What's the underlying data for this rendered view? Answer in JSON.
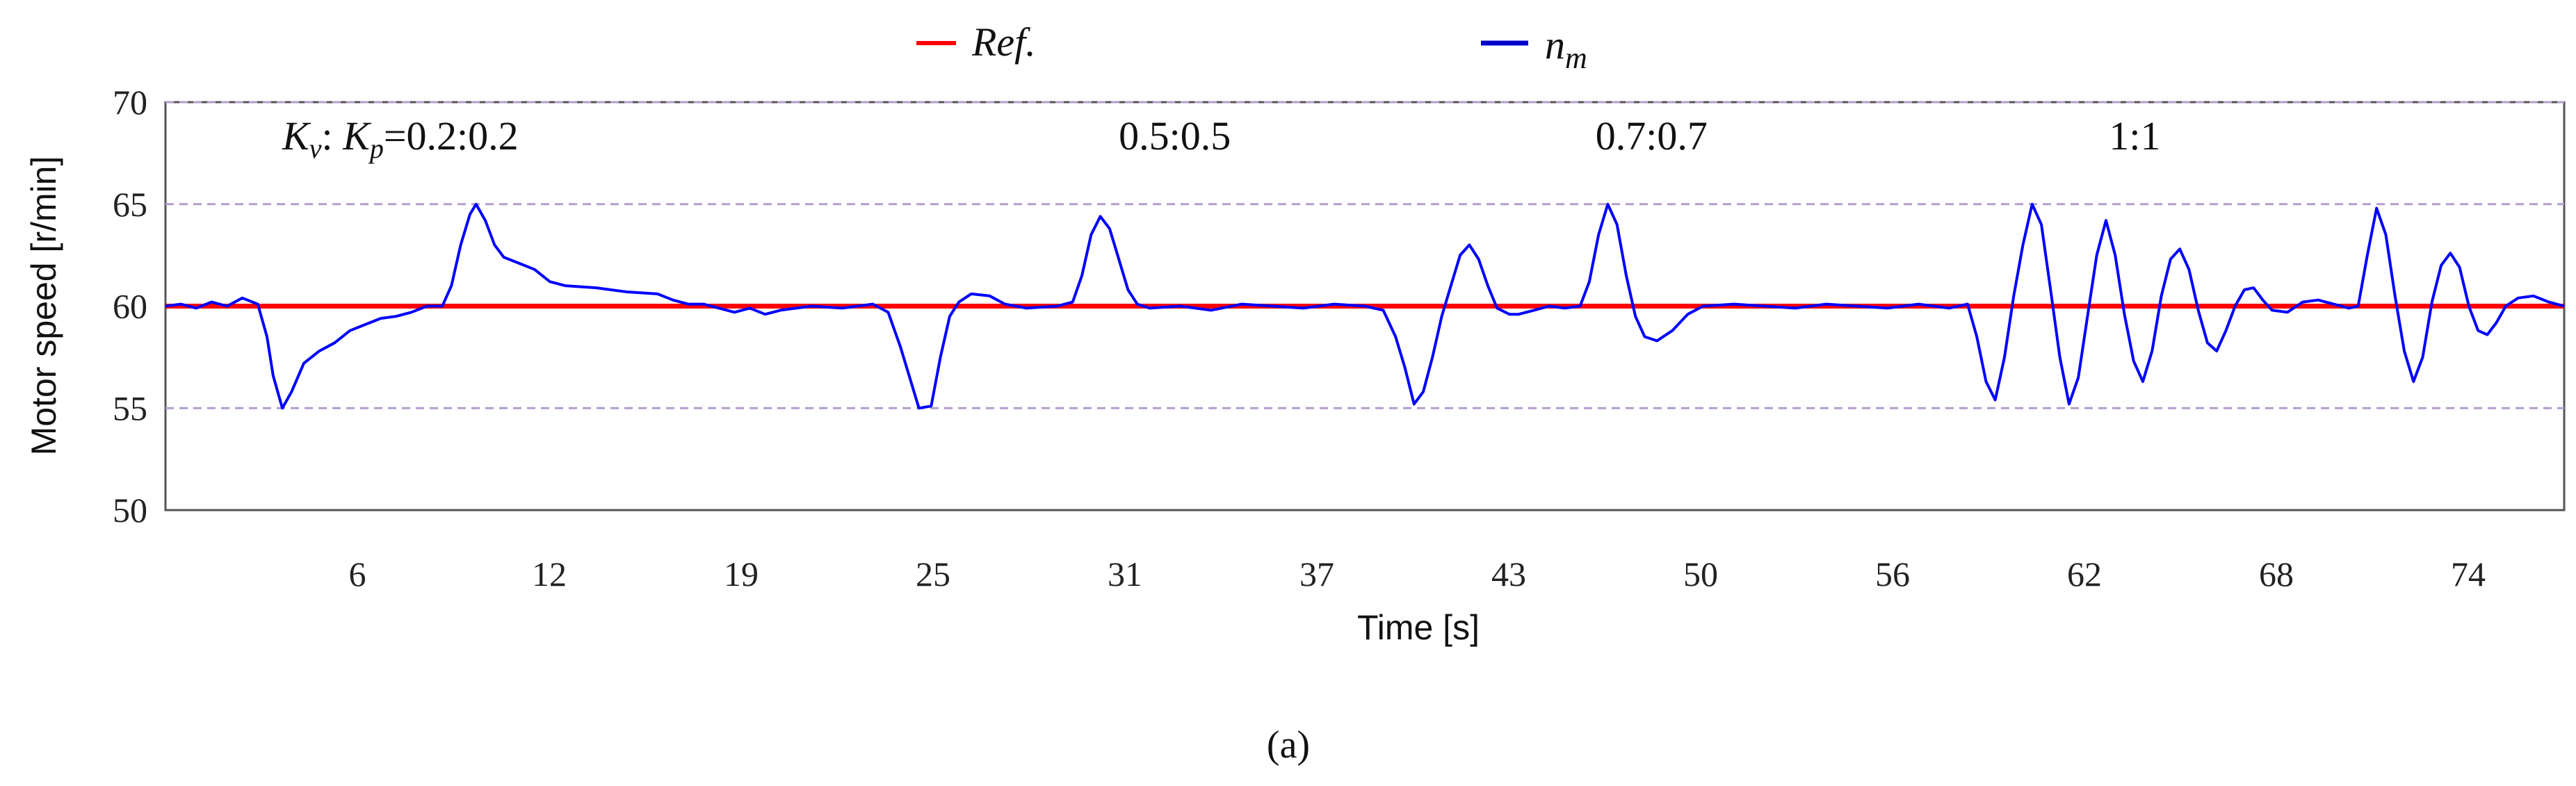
{
  "chart_data": {
    "type": "line",
    "title": "",
    "xlabel": "Time [s]",
    "ylabel": "Motor speed [r/min]",
    "caption": "(a)",
    "x_ticks": [
      "6",
      "12",
      "19",
      "25",
      "31",
      "37",
      "43",
      "50",
      "56",
      "62",
      "68",
      "74"
    ],
    "ylim": [
      50,
      70
    ],
    "y_ticks": [
      50,
      55,
      60,
      65,
      70
    ],
    "xlim": [
      0,
      78
    ],
    "grid": "dashed horizontal lines at 55, 60, 65, 70",
    "legend": {
      "position": "top-center",
      "entries": [
        {
          "name": "Ref.",
          "color": "#ff0000"
        },
        {
          "name": "n_m",
          "base": "n",
          "sub": "m",
          "color": "#0000ff"
        }
      ]
    },
    "annotations": [
      {
        "text": "Kv : Kp =0.2:0.2",
        "k1": "K",
        "s1": "v",
        "sep": ": ",
        "k2": "K",
        "s2": "p",
        "ratio": "=0.2:0.2",
        "x": 3.8
      },
      {
        "text": "0.5:0.5",
        "x": 31
      },
      {
        "text": "0.7:0.7",
        "x": 46.5
      },
      {
        "text": "1:1",
        "x": 63.2
      }
    ],
    "series": [
      {
        "name": "Ref.",
        "color": "#ff0000",
        "points": [
          [
            0,
            60
          ],
          [
            78,
            60
          ]
        ]
      },
      {
        "name": "n_m",
        "color": "#0000ff",
        "points": [
          [
            0,
            60.0
          ],
          [
            0.5,
            60.1
          ],
          [
            1.0,
            59.9
          ],
          [
            1.5,
            60.2
          ],
          [
            2.0,
            60.0
          ],
          [
            2.5,
            60.4
          ],
          [
            3.0,
            60.1
          ],
          [
            3.3,
            58.5
          ],
          [
            3.5,
            56.6
          ],
          [
            3.8,
            55.0
          ],
          [
            4.1,
            55.8
          ],
          [
            4.5,
            57.2
          ],
          [
            5.0,
            57.8
          ],
          [
            5.5,
            58.2
          ],
          [
            6.0,
            58.8
          ],
          [
            6.5,
            59.1
          ],
          [
            7.0,
            59.4
          ],
          [
            7.5,
            59.5
          ],
          [
            8.0,
            59.7
          ],
          [
            8.5,
            60.0
          ],
          [
            9.0,
            60.0
          ],
          [
            9.3,
            61.0
          ],
          [
            9.6,
            63.0
          ],
          [
            9.9,
            64.5
          ],
          [
            10.1,
            65.0
          ],
          [
            10.4,
            64.2
          ],
          [
            10.7,
            63.0
          ],
          [
            11.0,
            62.4
          ],
          [
            11.5,
            62.1
          ],
          [
            12.0,
            61.8
          ],
          [
            12.5,
            61.2
          ],
          [
            13.0,
            61.0
          ],
          [
            14.0,
            60.9
          ],
          [
            15.0,
            60.7
          ],
          [
            16.0,
            60.6
          ],
          [
            16.5,
            60.3
          ],
          [
            17.0,
            60.1
          ],
          [
            17.5,
            60.1
          ],
          [
            18.0,
            59.9
          ],
          [
            18.5,
            59.7
          ],
          [
            19.0,
            59.9
          ],
          [
            19.5,
            59.6
          ],
          [
            20.0,
            59.8
          ],
          [
            21.0,
            60.0
          ],
          [
            22.0,
            59.9
          ],
          [
            23.0,
            60.1
          ],
          [
            23.5,
            59.7
          ],
          [
            23.9,
            58.0
          ],
          [
            24.2,
            56.5
          ],
          [
            24.5,
            55.0
          ],
          [
            24.9,
            55.1
          ],
          [
            25.2,
            57.5
          ],
          [
            25.5,
            59.5
          ],
          [
            25.8,
            60.2
          ],
          [
            26.2,
            60.6
          ],
          [
            26.8,
            60.5
          ],
          [
            27.3,
            60.1
          ],
          [
            28.0,
            59.9
          ],
          [
            29.0,
            60.0
          ],
          [
            29.5,
            60.2
          ],
          [
            29.8,
            61.5
          ],
          [
            30.1,
            63.5
          ],
          [
            30.4,
            64.4
          ],
          [
            30.7,
            63.8
          ],
          [
            31.0,
            62.3
          ],
          [
            31.3,
            60.8
          ],
          [
            31.6,
            60.1
          ],
          [
            32.0,
            59.9
          ],
          [
            33.0,
            60.0
          ],
          [
            34.0,
            59.8
          ],
          [
            35.0,
            60.1
          ],
          [
            36.0,
            60.0
          ],
          [
            37.0,
            59.9
          ],
          [
            38.0,
            60.1
          ],
          [
            39.0,
            60.0
          ],
          [
            39.6,
            59.8
          ],
          [
            40.0,
            58.5
          ],
          [
            40.3,
            57.0
          ],
          [
            40.6,
            55.2
          ],
          [
            40.9,
            55.8
          ],
          [
            41.2,
            57.5
          ],
          [
            41.5,
            59.5
          ],
          [
            41.8,
            61.0
          ],
          [
            42.1,
            62.5
          ],
          [
            42.4,
            63.0
          ],
          [
            42.7,
            62.3
          ],
          [
            43.0,
            61.0
          ],
          [
            43.3,
            59.9
          ],
          [
            43.7,
            59.6
          ],
          [
            44.0,
            59.6
          ],
          [
            44.5,
            59.8
          ],
          [
            45.0,
            60.0
          ],
          [
            45.5,
            59.9
          ],
          [
            46.0,
            60.0
          ],
          [
            46.3,
            61.2
          ],
          [
            46.6,
            63.5
          ],
          [
            46.9,
            65.0
          ],
          [
            47.2,
            64.0
          ],
          [
            47.5,
            61.5
          ],
          [
            47.8,
            59.5
          ],
          [
            48.1,
            58.5
          ],
          [
            48.5,
            58.3
          ],
          [
            49.0,
            58.8
          ],
          [
            49.5,
            59.6
          ],
          [
            50.0,
            60.0
          ],
          [
            51.0,
            60.1
          ],
          [
            52.0,
            60.0
          ],
          [
            53.0,
            59.9
          ],
          [
            54.0,
            60.1
          ],
          [
            55.0,
            60.0
          ],
          [
            56.0,
            59.9
          ],
          [
            57.0,
            60.1
          ],
          [
            58.0,
            59.9
          ],
          [
            58.6,
            60.1
          ],
          [
            58.9,
            58.5
          ],
          [
            59.2,
            56.3
          ],
          [
            59.5,
            55.4
          ],
          [
            59.8,
            57.5
          ],
          [
            60.1,
            60.5
          ],
          [
            60.4,
            63.0
          ],
          [
            60.7,
            65.0
          ],
          [
            61.0,
            64.0
          ],
          [
            61.3,
            60.8
          ],
          [
            61.6,
            57.5
          ],
          [
            61.9,
            55.2
          ],
          [
            62.2,
            56.5
          ],
          [
            62.5,
            59.5
          ],
          [
            62.8,
            62.5
          ],
          [
            63.1,
            64.2
          ],
          [
            63.4,
            62.5
          ],
          [
            63.7,
            59.6
          ],
          [
            64.0,
            57.3
          ],
          [
            64.3,
            56.3
          ],
          [
            64.6,
            57.8
          ],
          [
            64.9,
            60.5
          ],
          [
            65.2,
            62.3
          ],
          [
            65.5,
            62.8
          ],
          [
            65.8,
            61.8
          ],
          [
            66.1,
            59.8
          ],
          [
            66.4,
            58.2
          ],
          [
            66.7,
            57.8
          ],
          [
            67.0,
            58.8
          ],
          [
            67.3,
            60.0
          ],
          [
            67.6,
            60.8
          ],
          [
            67.9,
            60.9
          ],
          [
            68.2,
            60.3
          ],
          [
            68.5,
            59.8
          ],
          [
            69.0,
            59.7
          ],
          [
            69.5,
            60.2
          ],
          [
            70.0,
            60.3
          ],
          [
            70.5,
            60.1
          ],
          [
            71.0,
            59.9
          ],
          [
            71.3,
            60.0
          ],
          [
            71.6,
            62.5
          ],
          [
            71.9,
            64.8
          ],
          [
            72.2,
            63.5
          ],
          [
            72.5,
            60.5
          ],
          [
            72.8,
            57.8
          ],
          [
            73.1,
            56.3
          ],
          [
            73.4,
            57.5
          ],
          [
            73.7,
            60.2
          ],
          [
            74.0,
            62.0
          ],
          [
            74.3,
            62.6
          ],
          [
            74.6,
            61.9
          ],
          [
            74.9,
            60.0
          ],
          [
            75.2,
            58.8
          ],
          [
            75.5,
            58.6
          ],
          [
            75.8,
            59.2
          ],
          [
            76.1,
            60.0
          ],
          [
            76.5,
            60.4
          ],
          [
            77.0,
            60.5
          ],
          [
            77.5,
            60.2
          ],
          [
            78.0,
            60.0
          ]
        ]
      }
    ]
  }
}
